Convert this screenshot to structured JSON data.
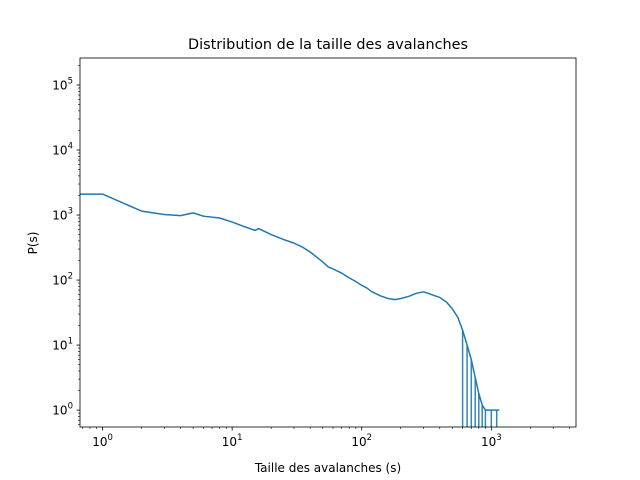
{
  "chart_data": {
    "type": "line",
    "title": "Distribution de la taille des avalanches",
    "xlabel": "Taille des avalanches (s)",
    "ylabel": "P(s)",
    "xscale": "log",
    "yscale": "log",
    "xlim": [
      0.67,
      4500
    ],
    "ylim": [
      0.55,
      260000
    ],
    "grid": false,
    "x_ticks": [
      {
        "base": "10",
        "exp": "0",
        "value": 1
      },
      {
        "base": "10",
        "exp": "1",
        "value": 10
      },
      {
        "base": "10",
        "exp": "2",
        "value": 100
      },
      {
        "base": "10",
        "exp": "3",
        "value": 1000
      }
    ],
    "y_ticks": [
      {
        "base": "10",
        "exp": "0",
        "value": 1
      },
      {
        "base": "10",
        "exp": "1",
        "value": 10
      },
      {
        "base": "10",
        "exp": "2",
        "value": 100
      },
      {
        "base": "10",
        "exp": "3",
        "value": 1000
      },
      {
        "base": "10",
        "exp": "4",
        "value": 10000
      },
      {
        "base": "10",
        "exp": "5",
        "value": 100000
      }
    ],
    "series": [
      {
        "color": "#1f77b4",
        "x": [
          0.67,
          1,
          2,
          3,
          4,
          5,
          6,
          8,
          10,
          12,
          15,
          16,
          20,
          25,
          30,
          35,
          40,
          45,
          50,
          55,
          60,
          70,
          80,
          90,
          100,
          110,
          120,
          140,
          160,
          180,
          200,
          230,
          260,
          300,
          330,
          360,
          400,
          450,
          500,
          550,
          600,
          650,
          700,
          750,
          800,
          850,
          900,
          1000,
          1100,
          1150
        ],
        "y": [
          2100,
          2100,
          1150,
          1020,
          980,
          1080,
          960,
          900,
          780,
          680,
          580,
          620,
          500,
          420,
          370,
          320,
          270,
          225,
          190,
          160,
          148,
          128,
          108,
          95,
          83,
          75,
          66,
          57,
          52,
          50,
          52,
          56,
          62,
          66,
          62,
          58,
          54,
          46,
          36,
          27,
          17,
          10,
          6,
          3.2,
          1.8,
          1.2,
          1,
          1,
          1,
          1
        ]
      }
    ]
  }
}
